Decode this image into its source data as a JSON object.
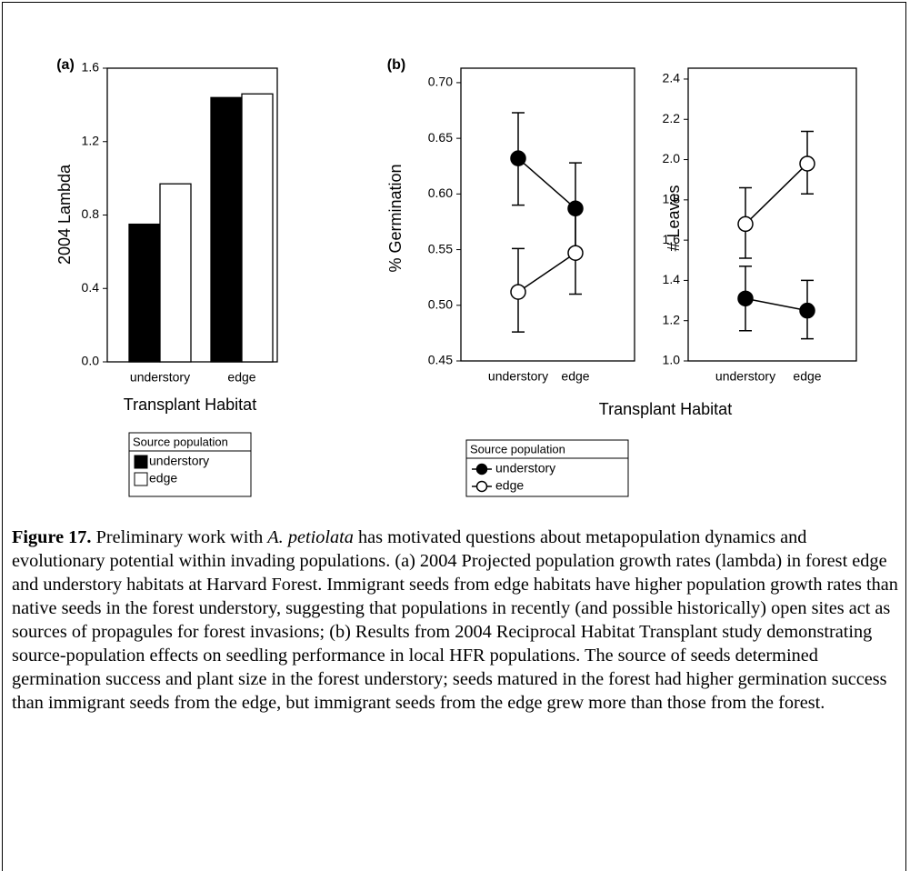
{
  "chart_data": [
    {
      "type": "bar",
      "panel_label": "(a)",
      "y_label": "2004 Lambda",
      "x_label": "Transplant Habitat",
      "categories": [
        "understory",
        "edge"
      ],
      "ylim": [
        0,
        1.6
      ],
      "yticks": [
        {
          "value": 0,
          "label": "0.0"
        },
        0.4,
        0.8,
        1.2,
        1.6
      ],
      "legend_title": "Source population",
      "series": [
        {
          "name": "understory",
          "color": "#000000",
          "values": [
            0.75,
            1.44
          ]
        },
        {
          "name": "edge",
          "color": "#ffffff",
          "values": [
            0.97,
            1.46
          ]
        }
      ]
    },
    {
      "type": "line",
      "panel_label": "(b)",
      "y_label": "% Germination",
      "x_label": "Transplant Habitat",
      "categories": [
        "understory",
        "edge"
      ],
      "ylim": [
        0.45,
        0.713
      ],
      "yticks": [
        0.45,
        {
          "value": 0.5,
          "label": "0.50"
        },
        0.55,
        {
          "value": 0.6,
          "label": "0.60"
        },
        0.65,
        {
          "value": 0.7,
          "label": "0.70"
        }
      ],
      "legend_title": "Source population",
      "series": [
        {
          "name": "understory",
          "color": "#000000",
          "values": [
            0.632,
            0.587
          ],
          "lower": [
            0.59,
            0.546
          ],
          "upper": [
            0.673,
            0.628
          ]
        },
        {
          "name": "edge",
          "color": "#ffffff",
          "values": [
            0.512,
            0.547
          ],
          "lower": [
            0.476,
            0.51
          ],
          "upper": [
            0.551,
            0.585
          ]
        }
      ]
    },
    {
      "type": "line",
      "y_label": "# Leaves",
      "categories": [
        "understory",
        "edge"
      ],
      "ylim": [
        1.0,
        2.454
      ],
      "yticks": [
        {
          "value": 1,
          "label": "1.0"
        },
        1.2,
        1.4,
        1.6,
        1.8,
        {
          "value": 2,
          "label": "2.0"
        },
        2.2,
        2.4
      ],
      "series": [
        {
          "color": "#000000",
          "values": [
            1.31,
            1.25
          ],
          "lower": [
            1.15,
            1.11
          ],
          "upper": [
            1.47,
            1.4
          ]
        },
        {
          "color": "#ffffff",
          "values": [
            1.68,
            1.98
          ],
          "lower": [
            1.51,
            1.83
          ],
          "upper": [
            1.86,
            2.14
          ]
        }
      ]
    }
  ],
  "caption": {
    "label": "Figure 17.",
    "segments": [
      " Preliminary work with ",
      "A. petiolata",
      " has motivated questions about metapopulation dynamics and evolutionary potential within invading populations. (a) 2004 Projected population growth rates (lambda) in forest edge and understory habitats at Harvard Forest. Immigrant seeds from edge habitats have higher population growth rates than native seeds in the forest understory, suggesting that populations in recently (and possible historically) open sites act as sources of propagules for forest invasions; (b) Results from 2004 Reciprocal Habitat Transplant study demonstrating source-population effects on seedling performance in local HFR populations. The source of seeds determined germination success and plant size in the forest understory; seeds matured in the forest had higher germination success than immigrant seeds from the edge, but immigrant seeds from the edge grew more than those from the forest."
    ]
  }
}
